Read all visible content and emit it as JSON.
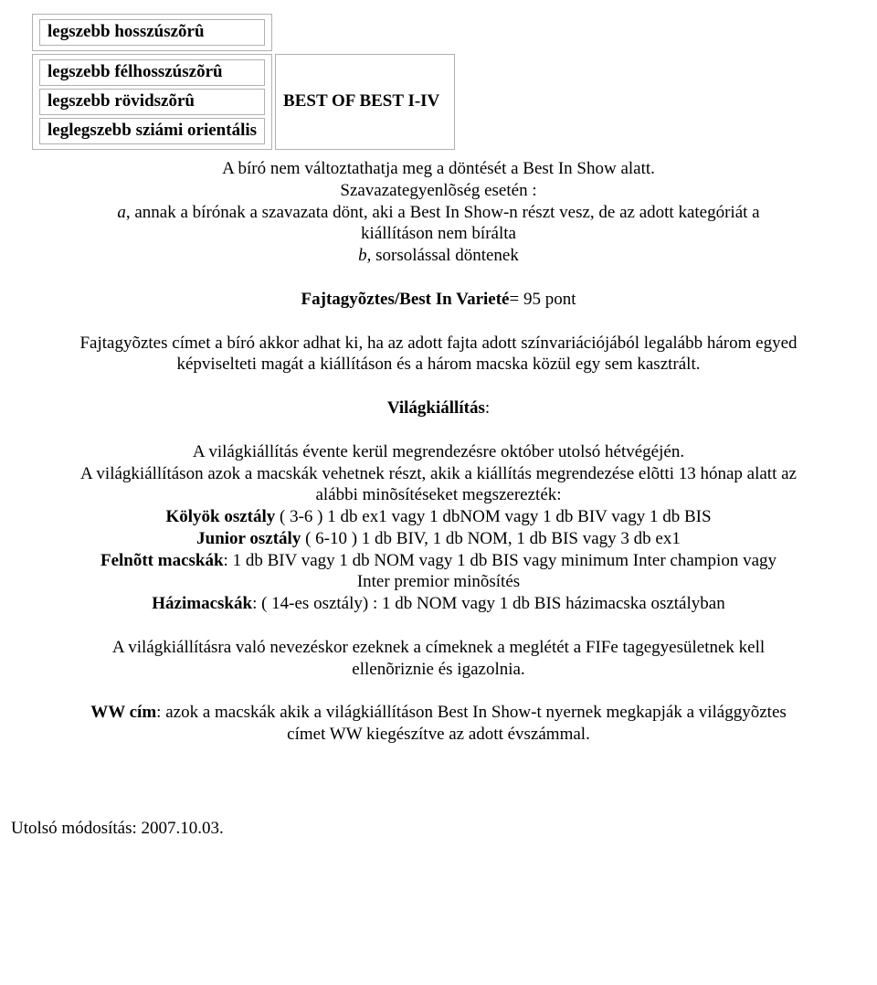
{
  "table": {
    "row0": "legszebb hosszúszõrû",
    "list": [
      "legszebb félhosszúszõrû",
      "legszebb rövidszõrû",
      "leglegszebb sziámi orientális"
    ],
    "right": "BEST OF BEST I-IV"
  },
  "intro": {
    "line1": "A bíró nem változtathatja meg a döntését a Best In Show alatt.",
    "line2": "Szavazategyenlõség esetén :",
    "line3_prefix": "a",
    "line3_rest": ", annak a bírónak a szavazata dönt, aki a Best In Show-n részt vesz, de az adott kategóriát a",
    "line4": "kiállításon nem bírálta",
    "line5_prefix": "b",
    "line5_rest": ", sorsolással döntenek"
  },
  "fajta_heading_bold": "Fajtagyõztes/Best In Varieté",
  "fajta_heading_rest": "= 95 pont",
  "fajta_para1": "Fajtagyõztes címet a bíró akkor adhat ki, ha az adott fajta adott színvariációjából legalább három egyed",
  "fajta_para2": "képviselteti magát a kiállításon és a három macska közül egy sem kasztrált.",
  "vilag": {
    "heading": "Világkiállítás",
    "line1": "A világkiállítás évente kerül megrendezésre október utolsó hétvégéjén.",
    "line2": "A világkiállításon azok a macskák vehetnek részt, akik a kiállítás megrendezése elõtti 13 hónap alatt az",
    "line3": "alábbi minõsítéseket megszerezték:",
    "kolyok_b": "Kölyök osztály",
    "kolyok_rest": " ( 3-6 ) 1 db ex1 vagy 1 dbNOM vagy 1 db BIV vagy 1 db BIS",
    "junior_b": "Junior osztály",
    "junior_rest": " ( 6-10 ) 1 db BIV, 1 db NOM, 1 db BIS vagy 3 db ex1",
    "felnott_b": "Felnõtt macskák",
    "felnott_rest": ": 1 db BIV vagy 1 db NOM vagy 1 db BIS vagy minimum Inter champion vagy",
    "felnott_rest2": "Inter premior minõsítés",
    "hazi_b": "Házimacskák",
    "hazi_rest": ": ( 14-es osztály) : 1 db NOM vagy 1 db BIS házimacska osztályban",
    "reg1": "A világkiállításra való nevezéskor ezeknek a címeknek a meglétét a FIFe tagegyesületnek kell",
    "reg2": "ellenõriznie és igazolnia.",
    "ww_b": "WW cím",
    "ww_rest1": ": azok a macskák akik a világkiállításon Best In Show-t nyernek megkapják a világgyõztes",
    "ww_rest2": "címet WW kiegészítve az adott évszámmal."
  },
  "footer": "Utolsó módosítás: 2007.10.03."
}
